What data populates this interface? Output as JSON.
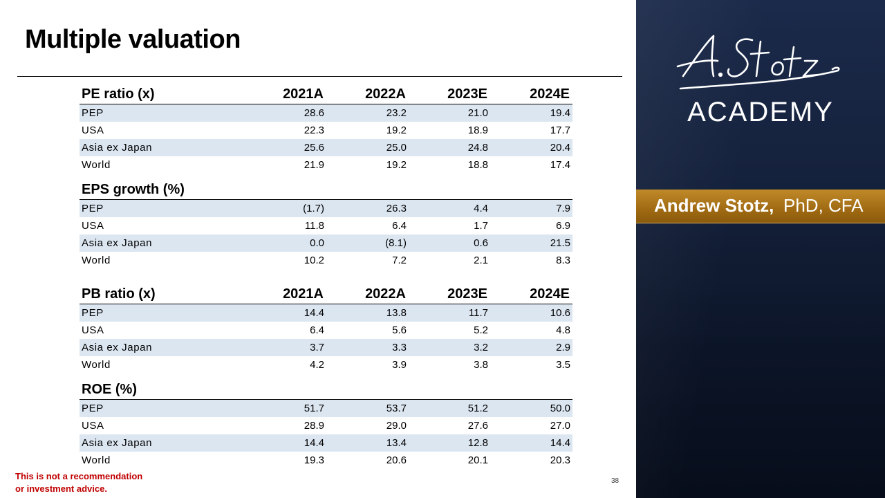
{
  "title": "Multiple valuation",
  "columns": [
    "2021A",
    "2022A",
    "2023E",
    "2024E"
  ],
  "sections": [
    {
      "heading": "PE ratio (x)",
      "rows": [
        {
          "label": "PEP",
          "values": [
            "28.6",
            "23.2",
            "21.0",
            "19.4"
          ]
        },
        {
          "label": "USA",
          "values": [
            "22.3",
            "19.2",
            "18.9",
            "17.7"
          ]
        },
        {
          "label": "Asia ex Japan",
          "values": [
            "25.6",
            "25.0",
            "24.8",
            "20.4"
          ]
        },
        {
          "label": "World",
          "values": [
            "21.9",
            "19.2",
            "18.8",
            "17.4"
          ]
        }
      ]
    },
    {
      "heading": "EPS growth (%)",
      "rows": [
        {
          "label": "PEP",
          "values": [
            "(1.7)",
            "26.3",
            "4.4",
            "7.9"
          ]
        },
        {
          "label": "USA",
          "values": [
            "11.8",
            "6.4",
            "1.7",
            "6.9"
          ]
        },
        {
          "label": "Asia ex Japan",
          "values": [
            "0.0",
            "(8.1)",
            "0.6",
            "21.5"
          ]
        },
        {
          "label": "World",
          "values": [
            "10.2",
            "7.2",
            "2.1",
            "8.3"
          ]
        }
      ]
    },
    {
      "heading": "PB ratio (x)",
      "rows": [
        {
          "label": "PEP",
          "values": [
            "14.4",
            "13.8",
            "11.7",
            "10.6"
          ]
        },
        {
          "label": "USA",
          "values": [
            "6.4",
            "5.6",
            "5.2",
            "4.8"
          ]
        },
        {
          "label": "Asia ex Japan",
          "values": [
            "3.7",
            "3.3",
            "3.2",
            "2.9"
          ]
        },
        {
          "label": "World",
          "values": [
            "4.2",
            "3.9",
            "3.8",
            "3.5"
          ]
        }
      ]
    },
    {
      "heading": "ROE (%)",
      "rows": [
        {
          "label": "PEP",
          "values": [
            "51.7",
            "53.7",
            "51.2",
            "50.0"
          ]
        },
        {
          "label": "USA",
          "values": [
            "28.9",
            "29.0",
            "27.6",
            "27.0"
          ]
        },
        {
          "label": "Asia ex Japan",
          "values": [
            "14.4",
            "13.4",
            "12.8",
            "14.4"
          ]
        },
        {
          "label": "World",
          "values": [
            "19.3",
            "20.6",
            "20.1",
            "20.3"
          ]
        }
      ]
    }
  ],
  "disclaimer": {
    "line1": "This is not a recommendation",
    "line2": "or investment advice."
  },
  "page_number": "38",
  "brand": {
    "script": "A. Stotz",
    "academy": "ACADEMY"
  },
  "presenter": {
    "name": "Andrew Stotz,",
    "credentials": "PhD, CFA"
  },
  "colors": {
    "row_shade": "#dce6f1",
    "disclaimer": "#c00000",
    "band": "#a06a12",
    "panel": "#15223d"
  }
}
